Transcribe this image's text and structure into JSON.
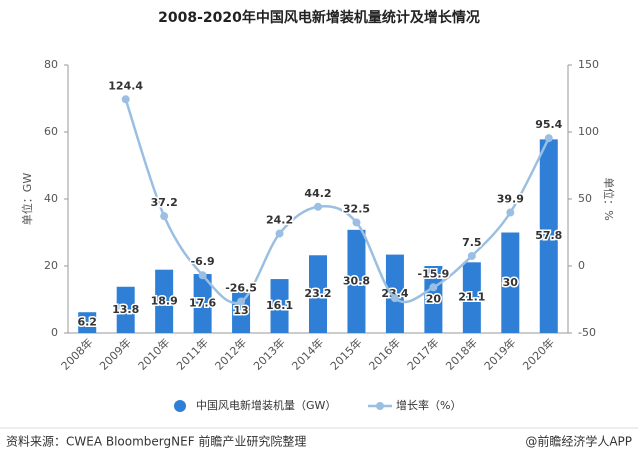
{
  "chart_data": {
    "type": "bar-line",
    "title": "2008-2020年中国风电新增装机量统计及增长情况",
    "y_label": "单位：GW",
    "y2_label": "单位：%",
    "categories": [
      "2008年",
      "2009年",
      "2010年",
      "2011年",
      "2012年",
      "2013年",
      "2014年",
      "2015年",
      "2016年",
      "2017年",
      "2018年",
      "2019年",
      "2020年"
    ],
    "series": [
      {
        "name": "中国风电新增装机量（GW）",
        "type": "bar",
        "color": "#2f7fd6",
        "values": [
          6.2,
          13.8,
          18.9,
          17.6,
          13,
          16.1,
          23.2,
          30.8,
          23.4,
          20,
          21.1,
          30,
          57.8
        ]
      },
      {
        "name": "增长率（%）",
        "type": "line",
        "axis": "y2",
        "color": "#9bbfe2",
        "values": [
          null,
          124.4,
          37.2,
          -6.9,
          -26.5,
          24.2,
          44.2,
          32.5,
          -24,
          -15.9,
          7.5,
          39.9,
          95.4
        ],
        "value_labels": [
          null,
          "124.4",
          "37.2",
          "-6.9",
          "-26.5",
          "24.2",
          "44.2",
          "32.5",
          null,
          "-15.9",
          "7.5",
          "39.9",
          "95.4"
        ]
      }
    ],
    "ylim": [
      0,
      80
    ],
    "yticks": [
      0,
      20,
      40,
      60,
      80
    ],
    "y2lim": [
      -50,
      150
    ],
    "y2ticks": [
      -50,
      0,
      50,
      100,
      150
    ],
    "source": "资料来源：CWEA BloombergNEF 前瞻产业研究院整理",
    "credit": "@前瞻经济学人APP"
  }
}
